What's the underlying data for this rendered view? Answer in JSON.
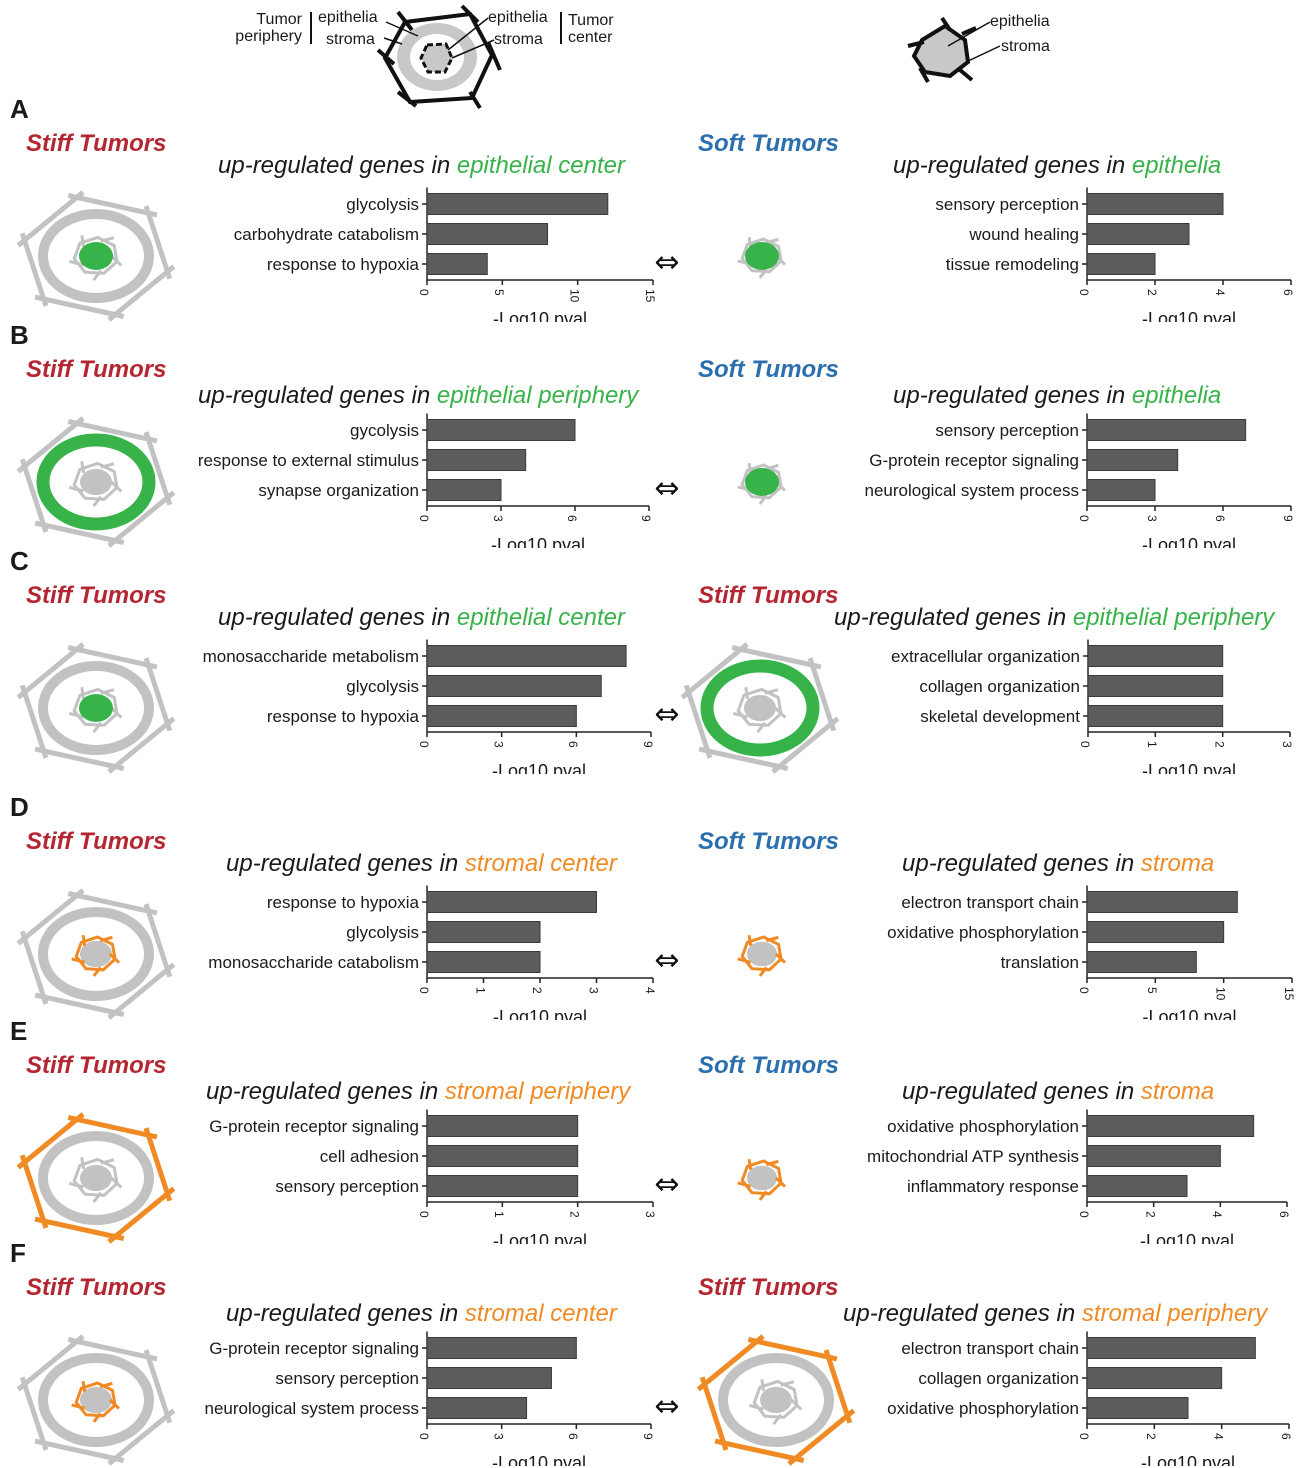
{
  "legend": {
    "left": {
      "tumor_periphery": "Tumor\nperiphery",
      "periphery_epithelia": "epithelia",
      "periphery_stroma": "stroma",
      "center_epithelia": "epithelia",
      "center_stroma": "stroma",
      "tumor_center": "Tumor\ncenter"
    },
    "right": {
      "epithelia": "epithelia",
      "stroma": "stroma"
    }
  },
  "colors": {
    "stiff": "#b52633",
    "soft": "#2c6fae",
    "green": "#37b34a",
    "orange": "#f08a24",
    "bar": "#5c5c5c",
    "schematic_gray": "#c2c2c2"
  },
  "panels": [
    {
      "letter": "A",
      "left_label": "Stiff Tumors",
      "right_label": "Soft Tumors"
    },
    {
      "letter": "B",
      "left_label": "Stiff Tumors",
      "right_label": "Soft Tumors"
    },
    {
      "letter": "C",
      "left_label": "Stiff Tumors",
      "right_label": "Stiff Tumors"
    },
    {
      "letter": "D",
      "left_label": "Stiff Tumors",
      "right_label": "Soft Tumors"
    },
    {
      "letter": "E",
      "left_label": "Stiff Tumors",
      "right_label": "Soft Tumors"
    },
    {
      "letter": "F",
      "left_label": "Stiff Tumors",
      "right_label": "Stiff Tumors"
    }
  ],
  "arrow_symbol": "⇔",
  "chart_data": [
    {
      "type": "bar",
      "panel": "A",
      "side": "left",
      "title_prefix": "up-regulated genes in ",
      "title_highlight": "epithelial center",
      "highlight_color": "green",
      "categories": [
        "glycolysis",
        "carbohydrate catabolism",
        "response to hypoxia"
      ],
      "values": [
        12,
        8,
        4
      ],
      "xlim": [
        0,
        15
      ],
      "xticks": [
        0,
        5,
        10,
        15
      ],
      "xlabel": "-Log10 pval"
    },
    {
      "type": "bar",
      "panel": "A",
      "side": "right",
      "title_prefix": "up-regulated genes in ",
      "title_highlight": "epithelia",
      "highlight_color": "green",
      "categories": [
        "sensory perception",
        "wound healing",
        "tissue remodeling"
      ],
      "values": [
        4,
        3,
        2
      ],
      "xlim": [
        0,
        6
      ],
      "xticks": [
        0,
        2,
        4,
        6
      ],
      "xlabel": "-Log10 pval"
    },
    {
      "type": "bar",
      "panel": "B",
      "side": "left",
      "title_prefix": "up-regulated genes in ",
      "title_highlight": "epithelial periphery",
      "highlight_color": "green",
      "categories": [
        "gycolysis",
        "response to external stimulus",
        "synapse organization"
      ],
      "values": [
        6,
        4,
        3
      ],
      "xlim": [
        0,
        9
      ],
      "xticks": [
        0,
        3,
        6,
        9
      ],
      "xlabel": "-Log10 pval"
    },
    {
      "type": "bar",
      "panel": "B",
      "side": "right",
      "title_prefix": "up-regulated genes in ",
      "title_highlight": "epithelia",
      "highlight_color": "green",
      "categories": [
        "sensory perception",
        "G-protein receptor signaling",
        "neurological system process"
      ],
      "values": [
        7,
        4,
        3
      ],
      "xlim": [
        0,
        9
      ],
      "xticks": [
        0,
        3,
        6,
        9
      ],
      "xlabel": "-Log10 pval"
    },
    {
      "type": "bar",
      "panel": "C",
      "side": "left",
      "title_prefix": "up-regulated genes in ",
      "title_highlight": "epithelial center",
      "highlight_color": "green",
      "categories": [
        "monosaccharide metabolism",
        "glycolysis",
        "response to hypoxia"
      ],
      "values": [
        8,
        7,
        6
      ],
      "xlim": [
        0,
        9
      ],
      "xticks": [
        0,
        3,
        6,
        9
      ],
      "xlabel": "-Log10 pval"
    },
    {
      "type": "bar",
      "panel": "C",
      "side": "right",
      "title_prefix": "up-regulated genes in ",
      "title_highlight": "epithelial periphery",
      "highlight_color": "green",
      "categories": [
        "extracellular organization",
        "collagen organization",
        "skeletal development"
      ],
      "values": [
        2,
        2,
        2
      ],
      "xlim": [
        0,
        3
      ],
      "xticks": [
        0,
        1,
        2,
        3
      ],
      "xlabel": "-Log10 pval"
    },
    {
      "type": "bar",
      "panel": "D",
      "side": "left",
      "title_prefix": "up-regulated genes in ",
      "title_highlight": "stromal center",
      "highlight_color": "orange",
      "categories": [
        "response to hypoxia",
        "glycolysis",
        "monosaccharide catabolism"
      ],
      "values": [
        3,
        2,
        2
      ],
      "xlim": [
        0,
        4
      ],
      "xticks": [
        0,
        1,
        2,
        3,
        4
      ],
      "xlabel": "-Log10 pval"
    },
    {
      "type": "bar",
      "panel": "D",
      "side": "right",
      "title_prefix": "up-regulated genes in ",
      "title_highlight": "stroma",
      "highlight_color": "orange",
      "categories": [
        "electron transport chain",
        "oxidative phosphorylation",
        "translation"
      ],
      "values": [
        11,
        10,
        8
      ],
      "xlim": [
        0,
        15
      ],
      "xticks": [
        0,
        5,
        10,
        15
      ],
      "xlabel": "-Log10 pval"
    },
    {
      "type": "bar",
      "panel": "E",
      "side": "left",
      "title_prefix": "up-regulated genes in ",
      "title_highlight": "stromal periphery",
      "highlight_color": "orange",
      "categories": [
        "G-protein receptor signaling",
        "cell adhesion",
        "sensory perception"
      ],
      "values": [
        2,
        2,
        2
      ],
      "xlim": [
        0,
        3
      ],
      "xticks": [
        0,
        1,
        2,
        3
      ],
      "xlabel": "-Log10 pval"
    },
    {
      "type": "bar",
      "panel": "E",
      "side": "right",
      "title_prefix": "up-regulated genes in ",
      "title_highlight": "stroma",
      "highlight_color": "orange",
      "categories": [
        "oxidative phosphorylation",
        "mitochondrial ATP synthesis",
        "inflammatory response"
      ],
      "values": [
        5,
        4,
        3
      ],
      "xlim": [
        0,
        6
      ],
      "xticks": [
        0,
        2,
        4,
        6
      ],
      "xlabel": "-Log10 pval"
    },
    {
      "type": "bar",
      "panel": "F",
      "side": "left",
      "title_prefix": "up-regulated genes in ",
      "title_highlight": "stromal center",
      "highlight_color": "orange",
      "categories": [
        "G-protein receptor signaling",
        "sensory perception",
        "neurological system process"
      ],
      "values": [
        6,
        5,
        4
      ],
      "xlim": [
        0,
        9
      ],
      "xticks": [
        0,
        3,
        6,
        9
      ],
      "xlabel": "-Log10 pval"
    },
    {
      "type": "bar",
      "panel": "F",
      "side": "right",
      "title_prefix": "up-regulated genes in ",
      "title_highlight": "stromal periphery",
      "highlight_color": "orange",
      "categories": [
        "electron transport chain",
        "collagen organization",
        "oxidative phosphorylation"
      ],
      "values": [
        5,
        4,
        3
      ],
      "xlim": [
        0,
        6
      ],
      "xticks": [
        0,
        2,
        4,
        6
      ],
      "xlabel": "-Log10 pval"
    }
  ]
}
